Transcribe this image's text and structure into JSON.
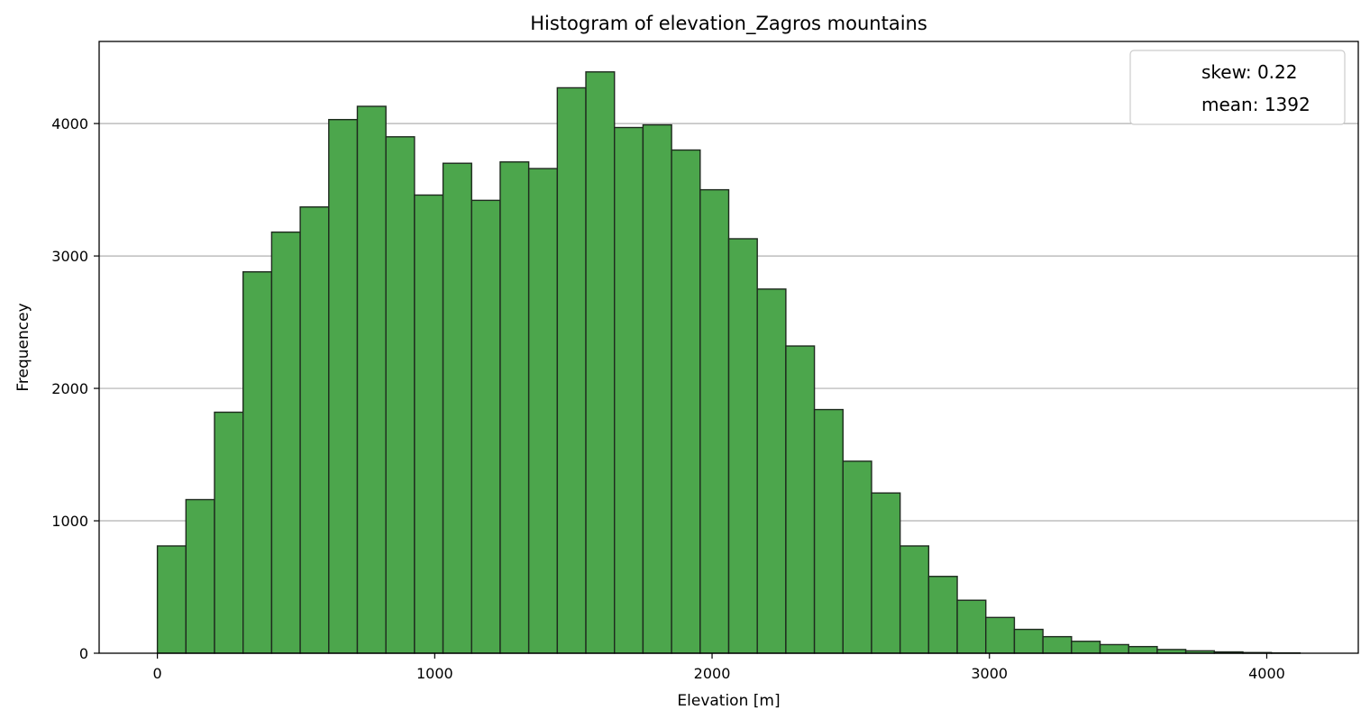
{
  "chart_data": {
    "type": "bar",
    "title": "Histogram of elevation_Zagros mountains",
    "xlabel": "Elevation [m]",
    "ylabel": "Frequencey",
    "xlim": [
      -210,
      4330
    ],
    "ylim": [
      0,
      4620
    ],
    "x_ticks": [
      0,
      1000,
      2000,
      3000,
      4000
    ],
    "y_ticks": [
      0,
      1000,
      2000,
      3000,
      4000
    ],
    "grid": {
      "axis": "y",
      "on": true
    },
    "legend": {
      "placement": "top-right",
      "entries": [
        "skew: 0.22",
        "mean: 1392"
      ]
    },
    "bin_start": 0,
    "bin_width": 103,
    "values": [
      810,
      1160,
      1820,
      2880,
      3180,
      3370,
      4030,
      4130,
      3900,
      3460,
      3700,
      3420,
      3710,
      3660,
      4270,
      4390,
      3970,
      3990,
      3800,
      3500,
      3130,
      2750,
      2320,
      1840,
      1450,
      1210,
      810,
      580,
      400,
      270,
      180,
      125,
      90,
      65,
      50,
      28,
      18,
      10,
      5,
      2
    ],
    "bar_color": "#4ca64c",
    "edge_color": "#1e2a1e"
  }
}
